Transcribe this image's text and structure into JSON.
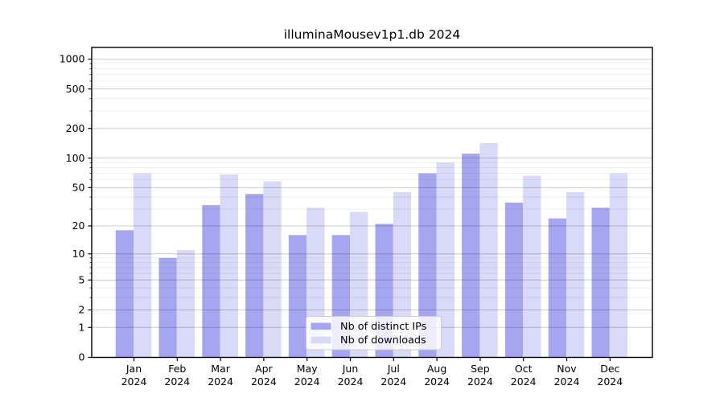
{
  "chart_data": {
    "type": "bar",
    "title": "illuminaMousev1p1.db 2024",
    "categories": [
      "Jan",
      "Feb",
      "Mar",
      "Apr",
      "May",
      "Jun",
      "Jul",
      "Aug",
      "Sep",
      "Oct",
      "Nov",
      "Dec"
    ],
    "year_label": "2024",
    "series": [
      {
        "name": "Nb of distinct IPs",
        "color": "#a5a5f0",
        "values": [
          18,
          9,
          33,
          43,
          16,
          16,
          21,
          70,
          111,
          35,
          24,
          31
        ]
      },
      {
        "name": "Nb of downloads",
        "color": "#d9d9f8",
        "values": [
          70,
          11,
          68,
          58,
          31,
          28,
          45,
          90,
          142,
          66,
          45,
          70
        ]
      }
    ],
    "y_scale": "log1p",
    "y_ticks": [
      0,
      1,
      2,
      5,
      10,
      20,
      50,
      100,
      200,
      500,
      1000
    ],
    "y_minor_ticks": [
      3,
      4,
      6,
      7,
      8,
      9,
      30,
      40,
      60,
      70,
      80,
      90,
      300,
      400,
      600,
      700,
      800,
      900
    ],
    "ylim": [
      0,
      1320
    ],
    "xlabel": "",
    "ylabel": "",
    "grid": true,
    "legend": {
      "position": "lower center",
      "items": [
        "Nb of distinct IPs",
        "Nb of downloads"
      ]
    },
    "colors": {
      "bar_dark": "#a5a5f0",
      "bar_light": "#d9d9f8",
      "axis": "#000000",
      "major_grid": "#cccccc",
      "minor_grid": "#eaeaea",
      "legend_border": "#cccccc"
    }
  }
}
